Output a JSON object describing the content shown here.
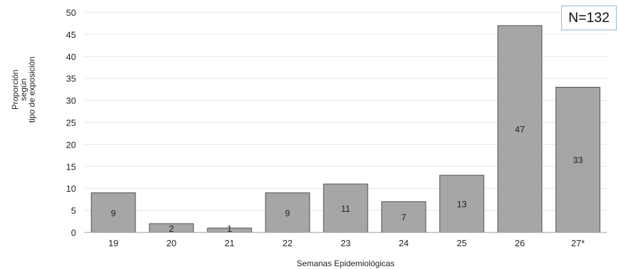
{
  "chart_data": {
    "type": "bar",
    "categories": [
      "19",
      "20",
      "21",
      "22",
      "23",
      "24",
      "25",
      "26",
      "27*"
    ],
    "values": [
      9,
      2,
      1,
      9,
      11,
      7,
      13,
      47,
      33
    ],
    "data_labels": [
      "9",
      "2",
      "1",
      "9",
      "11",
      "7",
      "13",
      "47",
      "33"
    ],
    "xlabel": "Semanas Epidemiológicas",
    "ylabel_lines": [
      "Proporción",
      "según",
      "tipo de exposición"
    ],
    "ylim": [
      0,
      50
    ],
    "yticks": [
      0,
      5,
      10,
      15,
      20,
      25,
      30,
      35,
      40,
      45,
      50
    ],
    "grid": true,
    "bar_color": "#a6a6a6",
    "annotation": "N=132"
  }
}
